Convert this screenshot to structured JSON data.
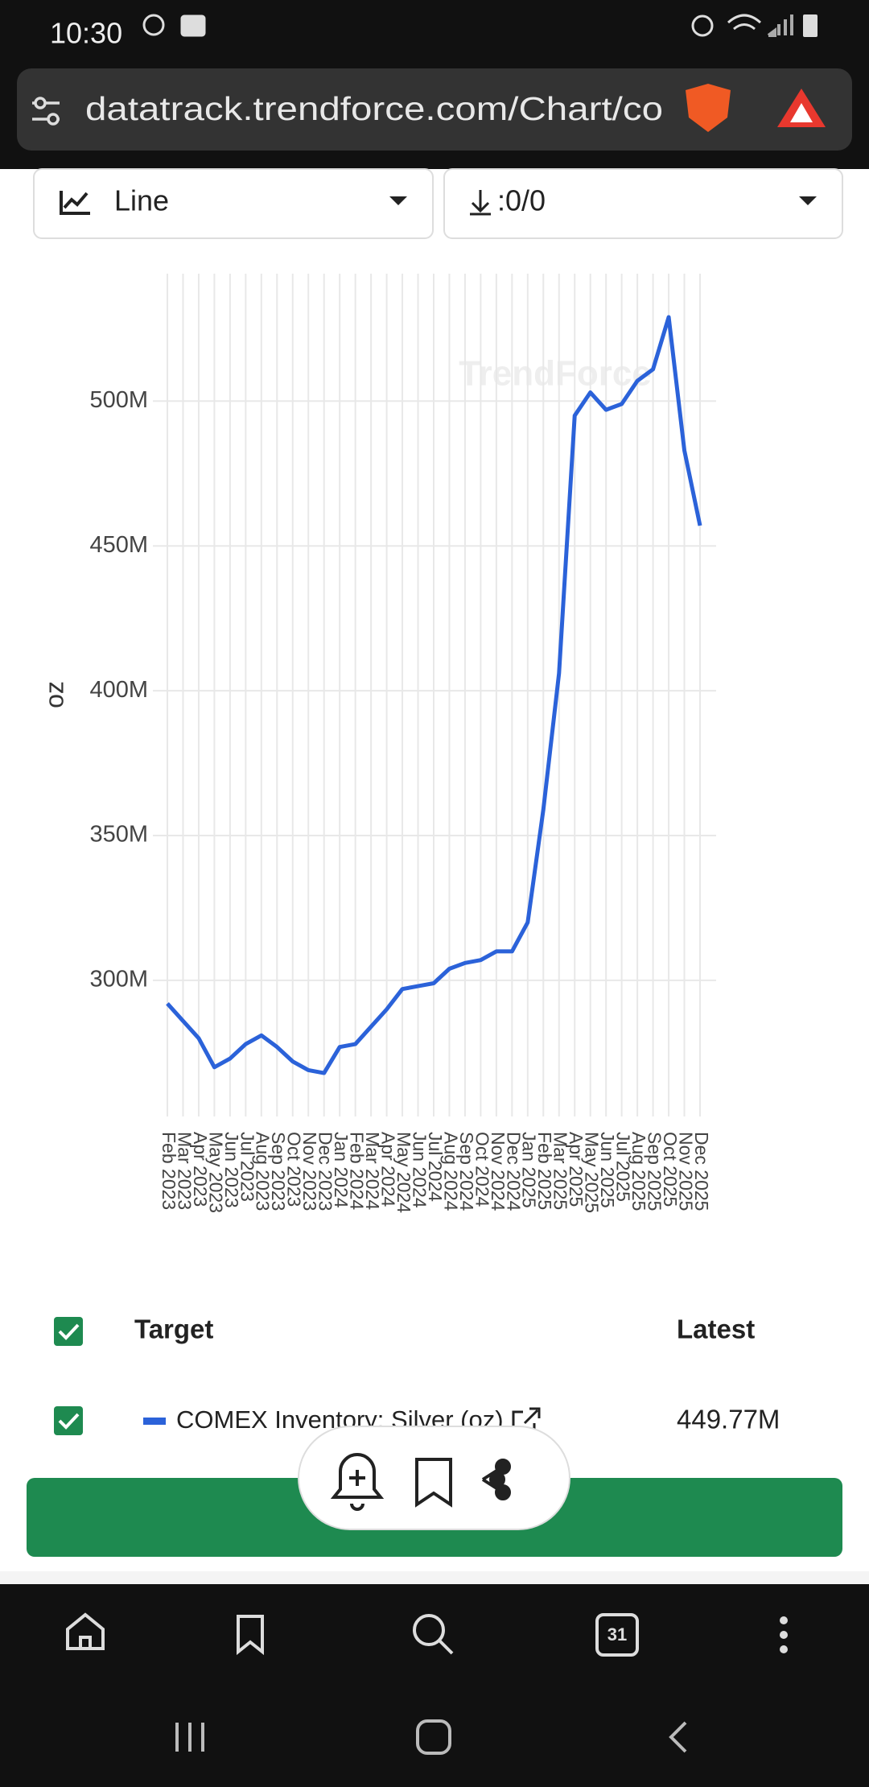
{
  "status_bar": {
    "time": "10:30"
  },
  "browser": {
    "url": "datatrack.trendforce.com/Chart/co",
    "tab_count": "31"
  },
  "controls": {
    "chart_type": "Line",
    "download": ":0/0"
  },
  "chart_data": {
    "type": "line",
    "watermark": "TrendForce",
    "y_label": "oz",
    "categories": [
      "Feb 2023",
      "Mar 2023",
      "Apr 2023",
      "May 2023",
      "Jun 2023",
      "Jul 2023",
      "Aug 2023",
      "Sep 2023",
      "Oct 2023",
      "Nov 2023",
      "Dec 2023",
      "Jan 2024",
      "Feb 2024",
      "Mar 2024",
      "Apr 2024",
      "May 2024",
      "Jun 2024",
      "Jul 2024",
      "Aug 2024",
      "Sep 2024",
      "Oct 2024",
      "Nov 2024",
      "Dec 2024",
      "Jan 2025",
      "Feb 2025",
      "Mar 2025",
      "Apr 2025",
      "May 2025",
      "Jun 2025",
      "Jul 2025",
      "Aug 2025",
      "Sep 2025",
      "Oct 2025",
      "Nov 2025",
      "Dec 2025"
    ],
    "series": [
      {
        "name": "COMEX Inventory: Silver (oz)",
        "color": "#2b62d9",
        "values": [
          292000000,
          286000000,
          280000000,
          270000000,
          273000000,
          278000000,
          281000000,
          277000000,
          272000000,
          269000000,
          268000000,
          277000000,
          278000000,
          284000000,
          290000000,
          297000000,
          298000000,
          299000000,
          304000000,
          306000000,
          307000000,
          310000000,
          310000000,
          320000000,
          359000000,
          406000000,
          495000000,
          503000000,
          497000000,
          499000000,
          507000000,
          511000000,
          529000000,
          483000000,
          457000000
        ]
      }
    ],
    "ylim": [
      253000000,
      544000000
    ],
    "yticks": [
      {
        "value": 300000000,
        "label": "300M"
      },
      {
        "value": 350000000,
        "label": "350M"
      },
      {
        "value": 400000000,
        "label": "400M"
      },
      {
        "value": 450000000,
        "label": "450M"
      },
      {
        "value": 500000000,
        "label": "500M"
      }
    ],
    "grid": true
  },
  "table": {
    "headers": [
      "Target",
      "Latest"
    ],
    "rows": [
      {
        "latest": "449.77M"
      }
    ]
  }
}
